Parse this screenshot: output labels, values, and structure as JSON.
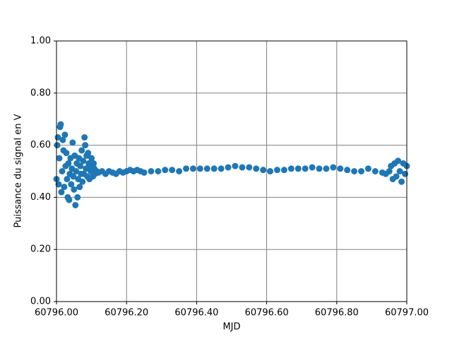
{
  "chart_data": {
    "type": "scatter",
    "x_label": "MJD",
    "y_label": "Puissance du signal en V",
    "color": "#1f77b4",
    "grid": true,
    "grid_color": "#808080",
    "xlim": [
      60796,
      60797
    ],
    "xticks": [
      {
        "value": 60796,
        "label": "60796.00"
      },
      {
        "value": 60796.2,
        "label": "60796.20"
      },
      {
        "value": 60796.4,
        "label": "60796.40"
      },
      {
        "value": 60796.6,
        "label": "60796.60"
      },
      {
        "value": 60796.8,
        "label": "60796.80"
      },
      {
        "value": 60797,
        "label": "60797.00"
      }
    ],
    "ylim": [
      0,
      1
    ],
    "yticks": [
      {
        "value": 0,
        "label": "0.00"
      },
      {
        "value": 0.2,
        "label": "0.20"
      },
      {
        "value": 0.4,
        "label": "0.40"
      },
      {
        "value": 0.6,
        "label": "0.60"
      },
      {
        "value": 0.8,
        "label": "0.80"
      },
      {
        "value": 1,
        "label": "1.00"
      }
    ],
    "x": [
      60796.0,
      60796.002,
      60796.004,
      60796.006,
      60796.008,
      60796.01,
      60796.012,
      60796.014,
      60796.016,
      60796.018,
      60796.02,
      60796.022,
      60796.024,
      60796.026,
      60796.028,
      60796.03,
      60796.032,
      60796.034,
      60796.036,
      60796.038,
      60796.04,
      60796.042,
      60796.044,
      60796.046,
      60796.048,
      60796.05,
      60796.052,
      60796.054,
      60796.056,
      60796.058,
      60796.06,
      60796.062,
      60796.064,
      60796.066,
      60796.068,
      60796.07,
      60796.072,
      60796.074,
      60796.076,
      60796.078,
      60796.08,
      60796.082,
      60796.084,
      60796.086,
      60796.088,
      60796.09,
      60796.092,
      60796.094,
      60796.096,
      60796.098,
      60796.1,
      60796.102,
      60796.104,
      60796.106,
      60796.108,
      60796.11,
      60796.115,
      60796.12,
      60796.13,
      60796.14,
      60796.15,
      60796.16,
      60796.17,
      60796.18,
      60796.19,
      60796.2,
      60796.21,
      60796.22,
      60796.23,
      60796.24,
      60796.25,
      60796.27,
      60796.29,
      60796.31,
      60796.33,
      60796.35,
      60796.37,
      60796.39,
      60796.41,
      60796.43,
      60796.45,
      60796.47,
      60796.49,
      60796.51,
      60796.53,
      60796.55,
      60796.57,
      60796.59,
      60796.61,
      60796.63,
      60796.65,
      60796.67,
      60796.69,
      60796.71,
      60796.73,
      60796.75,
      60796.77,
      60796.79,
      60796.81,
      60796.83,
      60796.85,
      60796.87,
      60796.89,
      60796.91,
      60796.93,
      60796.94,
      60796.95,
      60796.955,
      60796.96,
      60796.965,
      60796.97,
      60796.975,
      60796.98,
      60796.985,
      60796.99,
      60796.995,
      60797.0
    ],
    "values": [
      0.47,
      0.6,
      0.63,
      0.45,
      0.55,
      0.67,
      0.68,
      0.42,
      0.5,
      0.62,
      0.58,
      0.44,
      0.64,
      0.52,
      0.57,
      0.47,
      0.4,
      0.53,
      0.39,
      0.49,
      0.55,
      0.45,
      0.51,
      0.61,
      0.48,
      0.43,
      0.56,
      0.37,
      0.5,
      0.53,
      0.4,
      0.47,
      0.55,
      0.44,
      0.52,
      0.49,
      0.58,
      0.46,
      0.54,
      0.49,
      0.63,
      0.6,
      0.51,
      0.56,
      0.48,
      0.57,
      0.53,
      0.47,
      0.52,
      0.5,
      0.55,
      0.5,
      0.48,
      0.53,
      0.51,
      0.49,
      0.5,
      0.495,
      0.5,
      0.49,
      0.5,
      0.495,
      0.49,
      0.5,
      0.495,
      0.5,
      0.505,
      0.5,
      0.505,
      0.5,
      0.495,
      0.5,
      0.5,
      0.505,
      0.505,
      0.5,
      0.51,
      0.51,
      0.51,
      0.51,
      0.51,
      0.51,
      0.515,
      0.52,
      0.515,
      0.515,
      0.51,
      0.505,
      0.5,
      0.505,
      0.505,
      0.51,
      0.51,
      0.51,
      0.515,
      0.51,
      0.51,
      0.515,
      0.51,
      0.505,
      0.5,
      0.5,
      0.51,
      0.5,
      0.495,
      0.49,
      0.5,
      0.52,
      0.47,
      0.53,
      0.48,
      0.54,
      0.5,
      0.46,
      0.53,
      0.49,
      0.52
    ]
  }
}
